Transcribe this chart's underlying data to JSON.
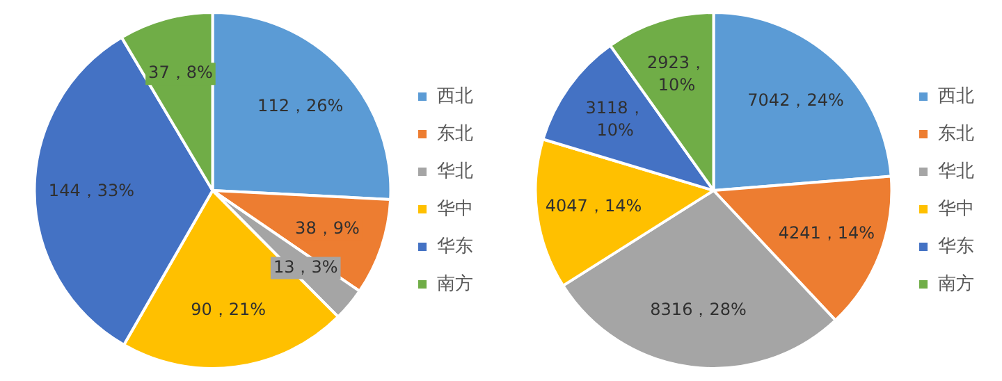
{
  "chart_data": [
    {
      "type": "pie",
      "categories": [
        "西北",
        "东北",
        "华北",
        "华中",
        "华东",
        "南方"
      ],
      "values": [
        112,
        38,
        13,
        90,
        144,
        37
      ],
      "colors": [
        "#5b9bd5",
        "#ed7d31",
        "#a5a5a5",
        "#ffc000",
        "#4472c4",
        "#70ad47"
      ],
      "value_labels": [
        "112，26%",
        "38，9%",
        "13，3%",
        "90，21%",
        "144，33%",
        "37，8%"
      ],
      "legend": "right"
    },
    {
      "type": "pie",
      "categories": [
        "西北",
        "东北",
        "华北",
        "华中",
        "华东",
        "南方"
      ],
      "values": [
        7042,
        4241,
        8316,
        4047,
        3118,
        2923
      ],
      "colors": [
        "#5b9bd5",
        "#ed7d31",
        "#a5a5a5",
        "#ffc000",
        "#4472c4",
        "#70ad47"
      ],
      "value_labels": [
        "7042，24%",
        "4241，14%",
        "8316，28%",
        "4047，14%",
        "3118，10%",
        "2923，10%"
      ],
      "legend": "right"
    }
  ]
}
